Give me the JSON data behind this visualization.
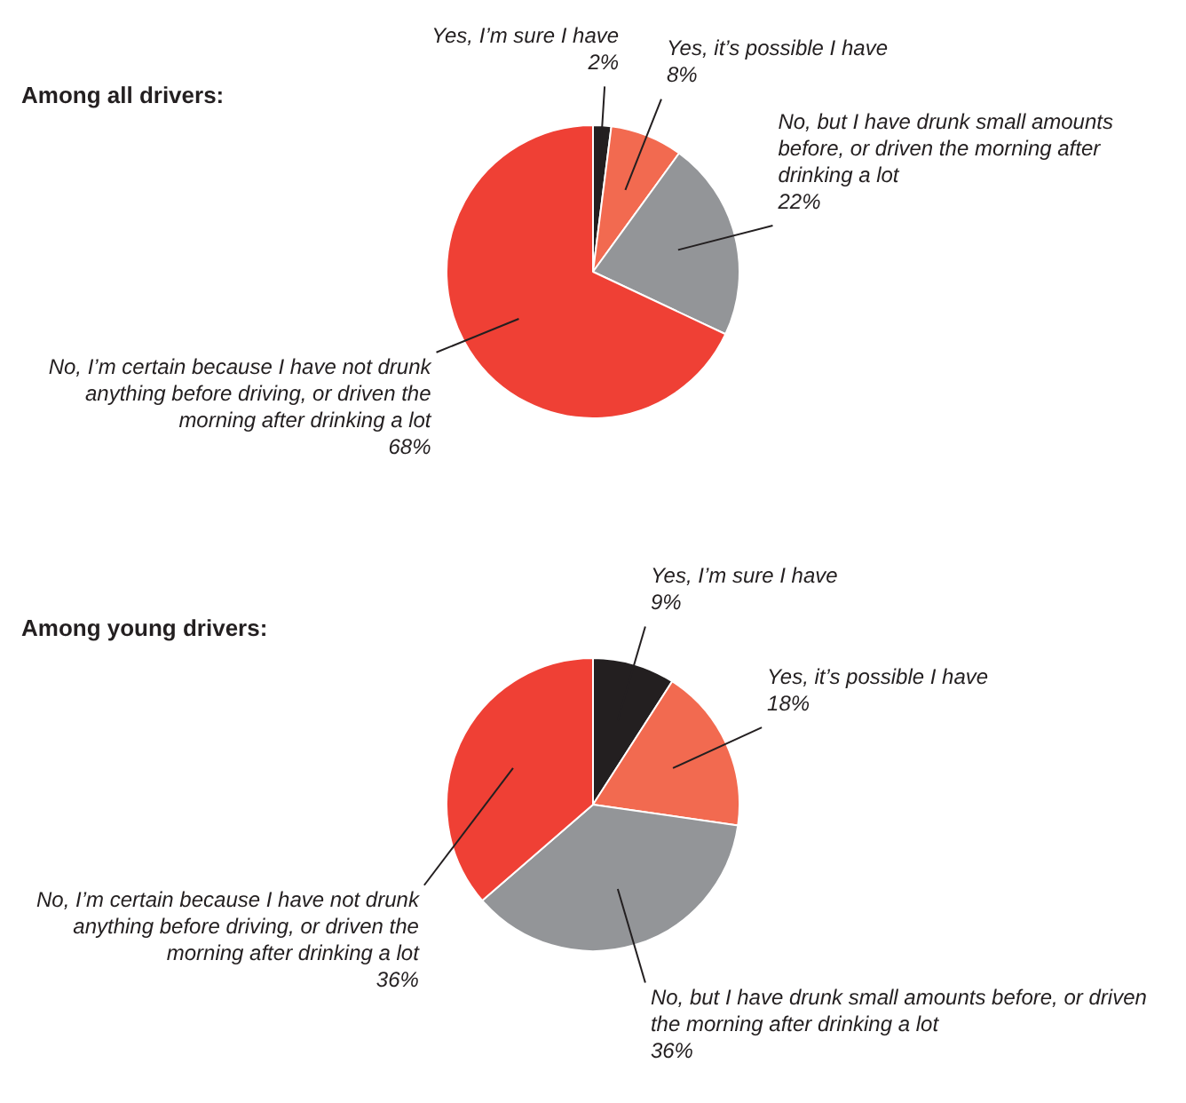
{
  "chart_data": [
    {
      "type": "pie",
      "title": "Among all drivers:",
      "categories": [
        "Yes, I’m sure I have",
        "Yes, it’s possible I have",
        "No, but I have drunk small amounts before, or driven the morning after drinking a lot",
        "No, I’m certain because I have not drunk anything before driving, or driven the morning after drinking a lot"
      ],
      "values": [
        2,
        8,
        22,
        68
      ],
      "value_labels": [
        "2%",
        "8%",
        "22%",
        "68%"
      ],
      "colors": [
        "#231f20",
        "#f26a50",
        "#939598",
        "#ef4035"
      ],
      "legend": false
    },
    {
      "type": "pie",
      "title": "Among young drivers:",
      "categories": [
        "Yes, I’m sure I have",
        "Yes, it’s possible I have",
        "No, but I have drunk small amounts before, or driven the morning after drinking a lot",
        "No, I’m certain because I have not drunk anything before driving, or driven the morning after drinking a lot"
      ],
      "values": [
        9,
        18,
        36,
        36
      ],
      "value_labels": [
        "9%",
        "18%",
        "36%",
        "36%"
      ],
      "colors": [
        "#231f20",
        "#f26a50",
        "#939598",
        "#ef4035"
      ],
      "legend": false
    }
  ]
}
